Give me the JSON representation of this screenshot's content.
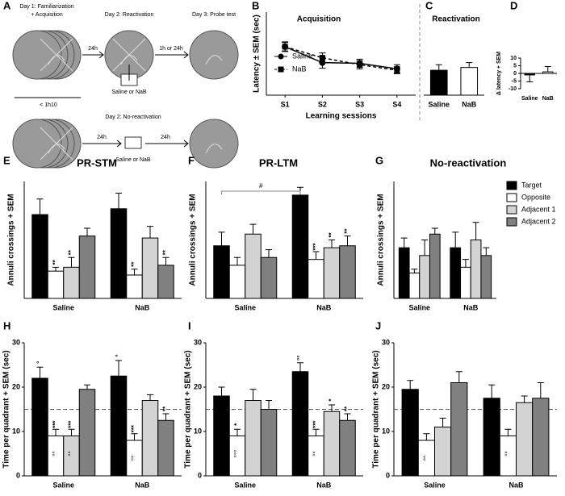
{
  "diagram": {
    "label": "A",
    "texts": [
      "Day 1: Familiarization",
      "+ Acquisition",
      "Day 2: Reactivation",
      "Day 3: Probe test",
      "24h",
      "1h or 24h",
      "Saline or NaB",
      "< 1h10",
      "Day 2: No-reactivation",
      "24h",
      "Saline or NaB",
      "24h"
    ]
  },
  "chart_data": [
    {
      "panel": "B",
      "type": "line",
      "title": "Acquisition",
      "x_label": "Learning sessions",
      "y_label": "Latency ± SEM (sec)",
      "categories": [
        "S1",
        "S2",
        "S3",
        "S4"
      ],
      "ylim": [
        0,
        60
      ],
      "legend": true,
      "series": [
        {
          "name": "Saline",
          "color": "#000000",
          "marker": "circle",
          "dashed": false,
          "values": [
            35,
            23.5,
            23,
            19
          ],
          "errors": [
            3.5,
            4,
            3,
            3
          ]
        },
        {
          "name": "NaB",
          "color": "#000000",
          "marker": "square",
          "dashed": true,
          "values": [
            35,
            27,
            22,
            18
          ],
          "errors": [
            3,
            3.5,
            3,
            2.5
          ]
        }
      ]
    },
    {
      "panel": "C",
      "type": "bar",
      "title": "Reactivation",
      "categories": [
        "Saline",
        "NaB"
      ],
      "values": [
        18,
        20
      ],
      "errors": [
        4,
        3.5
      ],
      "colors": [
        "#000000",
        "#ffffff"
      ],
      "ylim": [
        0,
        60
      ]
    },
    {
      "panel": "D",
      "type": "bar",
      "y_label": "Δ latency + SEM",
      "categories": [
        "Saline",
        "NaB"
      ],
      "values": [
        -1,
        1
      ],
      "errors": [
        4.5,
        3.5
      ],
      "colors": [
        "#000000",
        "#ffffff"
      ],
      "ylim": [
        -10,
        10
      ],
      "yticks": [
        -10,
        -5,
        0,
        5,
        10
      ]
    },
    {
      "panel": "E",
      "type": "grouped_bar",
      "title": "PR-STM",
      "y_label": "Annuli crossings + SEM",
      "categories": [
        "Saline",
        "NaB"
      ],
      "ylim": [
        0,
        6
      ],
      "series": [
        {
          "color": "#000000",
          "values": [
            4.3,
            4.6
          ],
          "errors": [
            0.8,
            0.8
          ],
          "above": [
            null,
            null
          ]
        },
        {
          "color": "#ffffff",
          "values": [
            1.4,
            1.2
          ],
          "errors": [
            0.2,
            0.3
          ],
          "above": [
            "**",
            "**"
          ]
        },
        {
          "color": "#d3d3d3",
          "values": [
            1.6,
            3.1
          ],
          "errors": [
            0.5,
            0.6
          ],
          "above": [
            "**",
            null
          ]
        },
        {
          "color": "#808080",
          "values": [
            3.2,
            1.7
          ],
          "errors": [
            0.4,
            0.4
          ],
          "above": [
            null,
            "**"
          ]
        }
      ]
    },
    {
      "panel": "F",
      "type": "grouped_bar",
      "title": "PR-LTM",
      "y_label": "Annuli crossings + SEM",
      "categories": [
        "Saline",
        "NaB"
      ],
      "ylim": [
        0,
        6
      ],
      "bracket_label": "#",
      "series": [
        {
          "color": "#000000",
          "values": [
            2.7,
            5.3
          ],
          "errors": [
            0.7,
            0.4
          ],
          "above": [
            null,
            null
          ]
        },
        {
          "color": "#ffffff",
          "values": [
            1.7,
            2.0
          ],
          "errors": [
            0.4,
            0.4
          ],
          "above": [
            null,
            "***"
          ]
        },
        {
          "color": "#d3d3d3",
          "values": [
            3.3,
            2.6
          ],
          "errors": [
            0.5,
            0.4
          ],
          "above": [
            null,
            "**"
          ]
        },
        {
          "color": "#808080",
          "values": [
            2.1,
            2.7
          ],
          "errors": [
            0.4,
            0.5
          ],
          "above": [
            null,
            "**"
          ]
        }
      ]
    },
    {
      "panel": "G",
      "type": "grouped_bar",
      "title": "No-reactivation",
      "y_label": "Annuli crossings + SEM",
      "categories": [
        "Saline",
        "NaB"
      ],
      "ylim": [
        0,
        6
      ],
      "legend": true,
      "series": [
        {
          "name": "Target",
          "color": "#000000",
          "values": [
            2.6,
            2.6
          ],
          "errors": [
            0.5,
            0.8
          ]
        },
        {
          "name": "Opposite",
          "color": "#ffffff",
          "values": [
            1.3,
            1.6
          ],
          "errors": [
            0.2,
            0.4
          ]
        },
        {
          "name": "Adjacent 1",
          "color": "#d3d3d3",
          "values": [
            2.2,
            3.0
          ],
          "errors": [
            0.8,
            0.9
          ]
        },
        {
          "name": "Adjacent 2",
          "color": "#808080",
          "values": [
            3.3,
            2.2
          ],
          "errors": [
            0.3,
            0.4
          ]
        }
      ]
    },
    {
      "panel": "H",
      "type": "grouped_bar",
      "y_label": "Time per quadrant + SEM (sec)",
      "categories": [
        "Saline",
        "NaB"
      ],
      "ylim": [
        0,
        30
      ],
      "yticks": [
        0,
        10,
        20,
        30
      ],
      "ref_line": 15,
      "series": [
        {
          "color": "#000000",
          "values": [
            22,
            22.5
          ],
          "errors": [
            2.5,
            3.5
          ],
          "above": [
            "°",
            "°"
          ],
          "below": [
            null,
            null
          ]
        },
        {
          "color": "#ffffff",
          "values": [
            9,
            8
          ],
          "errors": [
            1.5,
            1.5
          ],
          "above": [
            "***",
            "***"
          ],
          "below": [
            "°°",
            "°°"
          ]
        },
        {
          "color": "#d3d3d3",
          "values": [
            9,
            17
          ],
          "errors": [
            1.5,
            1.3
          ],
          "above": [
            "***",
            null
          ],
          "below": [
            "°°",
            null
          ]
        },
        {
          "color": "#808080",
          "values": [
            19.5,
            12.5
          ],
          "errors": [
            1,
            1.5
          ],
          "above": [
            null,
            "**"
          ],
          "below": [
            null,
            null
          ]
        }
      ]
    },
    {
      "panel": "I",
      "type": "grouped_bar",
      "y_label": "Time per quadrant + SEM (sec)",
      "categories": [
        "Saline",
        "NaB"
      ],
      "ylim": [
        0,
        30
      ],
      "yticks": [
        0,
        10,
        20,
        30
      ],
      "ref_line": 15,
      "series": [
        {
          "color": "#000000",
          "values": [
            18,
            23.5
          ],
          "errors": [
            2,
            2
          ],
          "above": [
            null,
            "°°"
          ],
          "below": [
            null,
            null
          ]
        },
        {
          "color": "#ffffff",
          "values": [
            9,
            9
          ],
          "errors": [
            1.5,
            1.5
          ],
          "above": [
            "*",
            "***"
          ],
          "below": [
            "°°°",
            "°°"
          ]
        },
        {
          "color": "#d3d3d3",
          "values": [
            17,
            14.5
          ],
          "errors": [
            2.5,
            1.5
          ],
          "above": [
            null,
            "*"
          ],
          "below": [
            null,
            null
          ]
        },
        {
          "color": "#808080",
          "values": [
            15,
            12.5
          ],
          "errors": [
            2,
            1.5
          ],
          "above": [
            null,
            "**"
          ],
          "below": [
            null,
            null
          ]
        }
      ]
    },
    {
      "panel": "J",
      "type": "grouped_bar",
      "y_label": "Time per quadrant + SEM (sec)",
      "categories": [
        "Saline",
        "NaB"
      ],
      "ylim": [
        0,
        30
      ],
      "yticks": [
        0,
        10,
        20,
        30
      ],
      "ref_line": 15,
      "series": [
        {
          "color": "#000000",
          "values": [
            19.5,
            17.5
          ],
          "errors": [
            2,
            3
          ],
          "below": [
            null,
            null
          ]
        },
        {
          "color": "#ffffff",
          "values": [
            8,
            9
          ],
          "errors": [
            1.5,
            1.5
          ],
          "below": [
            "°°",
            "°°"
          ]
        },
        {
          "color": "#d3d3d3",
          "values": [
            11,
            16.5
          ],
          "errors": [
            2,
            1.5
          ],
          "below": [
            null,
            null
          ]
        },
        {
          "color": "#808080",
          "values": [
            21,
            17.5
          ],
          "errors": [
            2.5,
            3.5
          ],
          "below": [
            null,
            null
          ]
        }
      ]
    }
  ]
}
